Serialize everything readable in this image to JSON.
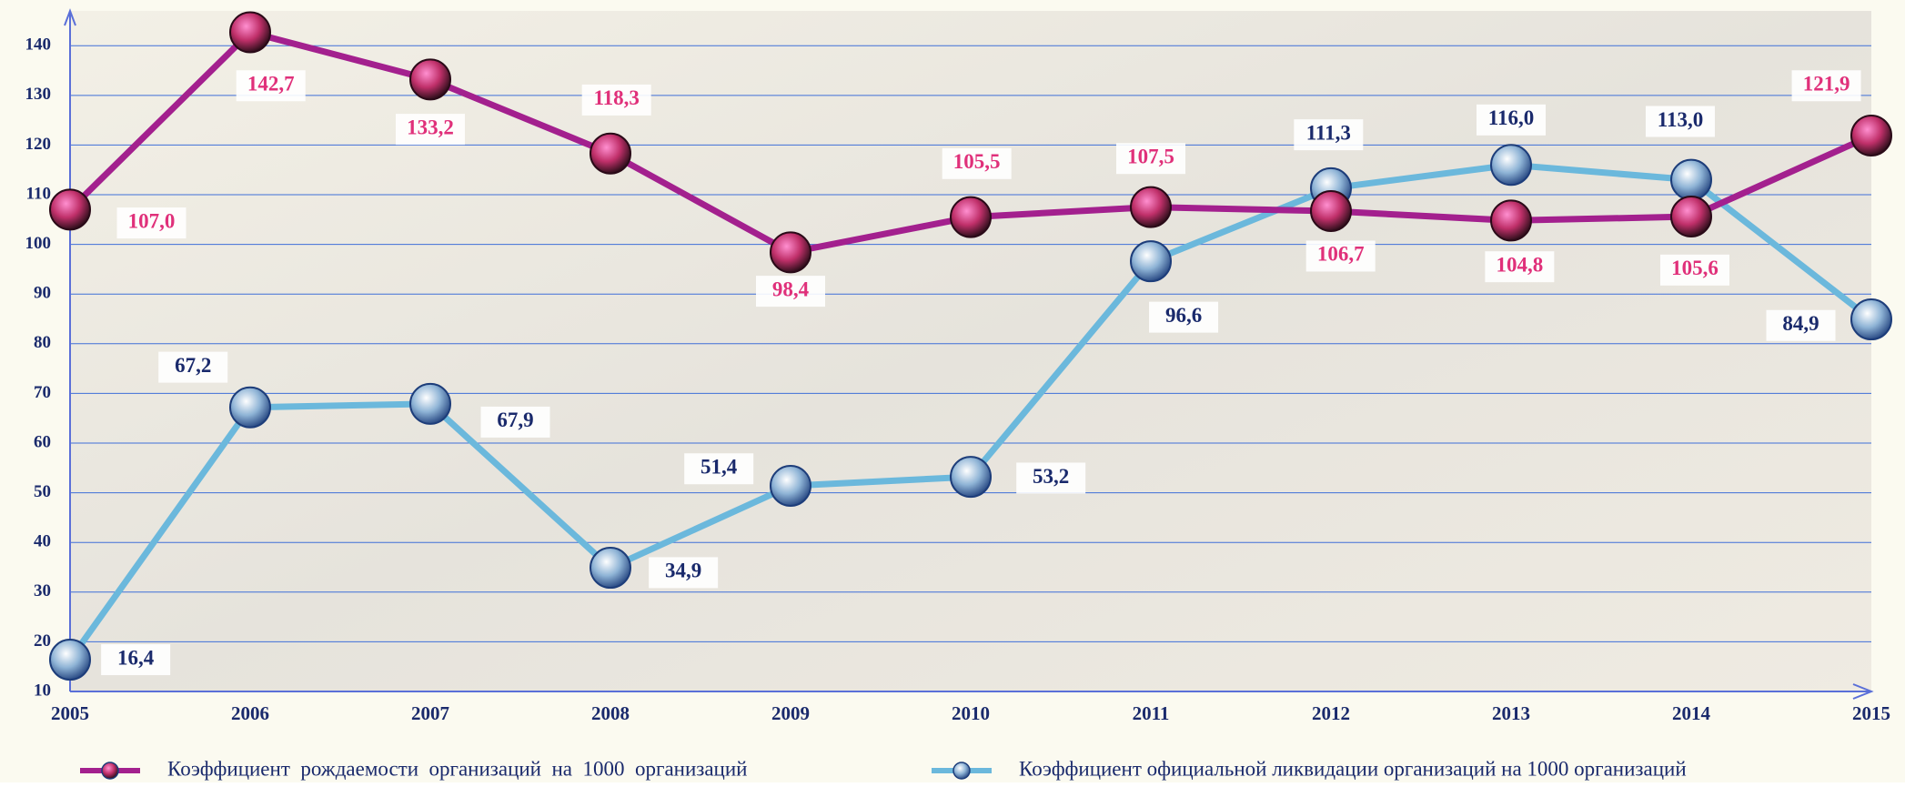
{
  "chart_data": {
    "type": "line",
    "categories": [
      "2005",
      "2006",
      "2007",
      "2008",
      "2009",
      "2010",
      "2011",
      "2012",
      "2013",
      "2014",
      "2015"
    ],
    "series": [
      {
        "name": "Коэффициент  рождаемости  организаций  на  1000  организаций",
        "color": "#a3208e",
        "values": [
          107.0,
          142.7,
          133.2,
          118.3,
          98.4,
          105.5,
          107.5,
          106.7,
          104.8,
          105.6,
          121.9
        ],
        "value_labels": [
          "107,0",
          "142,7",
          "133,2",
          "118,3",
          "98,4",
          "105,5",
          "107,5",
          "106,7",
          "104,8",
          "105,6",
          "121,9"
        ]
      },
      {
        "name": "Коэффициент официальной ликвидации организаций на 1000 организаций",
        "color": "#6bb8dc",
        "values": [
          16.4,
          67.2,
          67.9,
          34.9,
          51.4,
          53.2,
          96.6,
          111.3,
          116.0,
          113.0,
          84.9
        ],
        "value_labels": [
          "16,4",
          "67,2",
          "67,9",
          "34,9",
          "51,4",
          "53,2",
          "96,6",
          "111,3",
          "116,0",
          "113,0",
          "84,9"
        ]
      }
    ],
    "ylim": [
      10,
      147
    ],
    "yticks": [
      10,
      20,
      30,
      40,
      50,
      60,
      70,
      80,
      90,
      100,
      110,
      120,
      130,
      140
    ],
    "grid": true,
    "legend": "bottom"
  }
}
